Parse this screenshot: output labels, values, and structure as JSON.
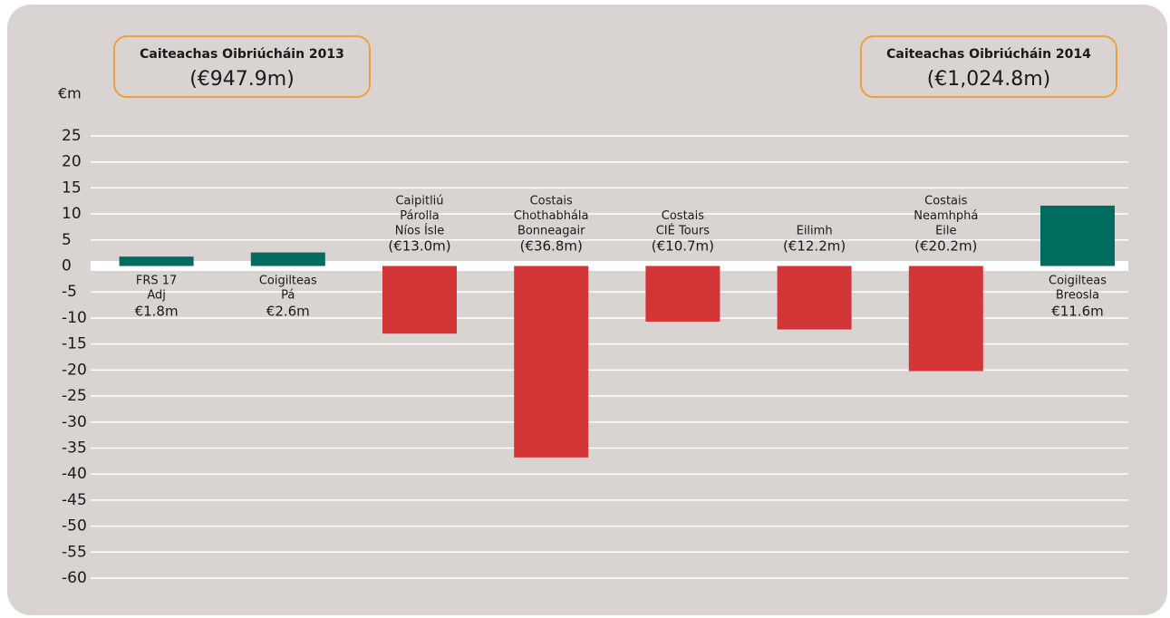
{
  "chart_data": {
    "type": "bar",
    "y_unit_label": "€m",
    "annotations": [
      {
        "title": "Caiteachas Oibriúcháin 2013",
        "value": "(€947.9m)"
      },
      {
        "title": "Caiteachas Oibriúcháin 2014",
        "value": "(€1,024.8m)"
      }
    ],
    "categories": [
      [
        "FRS 17",
        "Adj"
      ],
      [
        "Coigilteas",
        "Pá"
      ],
      [
        "Caipitliú",
        "Párolla",
        "Níos Ísle"
      ],
      [
        "Costais",
        "Chothabhála",
        "Bonneagair"
      ],
      [
        "Costais",
        "CIÉ Tours"
      ],
      [
        "Eilimh"
      ],
      [
        "Costais",
        "Neamhphá",
        "Eile"
      ],
      [
        "Coigilteas",
        "Breosla"
      ]
    ],
    "values": [
      1.8,
      2.6,
      -13.0,
      -36.8,
      -10.7,
      -12.2,
      -20.2,
      11.6
    ],
    "value_labels": [
      "€1.8m",
      "€2.6m",
      "(€13.0m)",
      "(€36.8m)",
      "(€10.7m)",
      "(€12.2m)",
      "(€20.2m)",
      "€11.6m"
    ],
    "colors": [
      "#006b5f",
      "#006b5f",
      "#d23535",
      "#d23535",
      "#d23535",
      "#d23535",
      "#d23535",
      "#006b5f"
    ],
    "ylim": [
      -60,
      25
    ],
    "yticks": [
      25,
      20,
      15,
      10,
      5,
      0,
      -5,
      -10,
      -15,
      -20,
      -25,
      -30,
      -35,
      -40,
      -45,
      -50,
      -55,
      -60
    ],
    "grid": true
  }
}
